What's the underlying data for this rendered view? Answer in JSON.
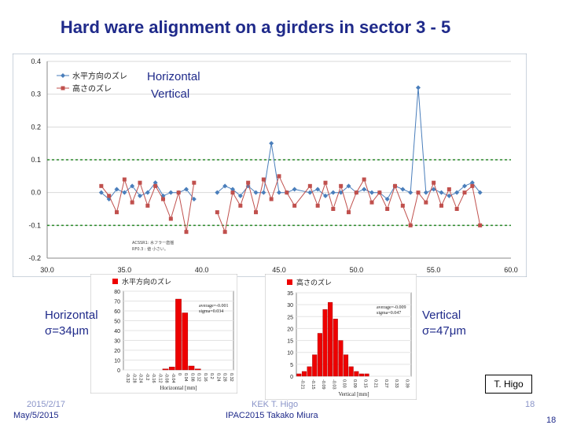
{
  "title": "Hard ware alignment on a girders in sector 3 - 5",
  "annotations": {
    "legend_h": "Horizontal",
    "legend_v": "Vertical",
    "hist_h_label": "Horizontal",
    "hist_h_sigma": "σ=34μm",
    "hist_v_label": "Vertical",
    "hist_v_sigma": "σ=47μm",
    "credit": "T. Higo"
  },
  "footer": {
    "left_top": "2015/2/17",
    "left": "May/5/2015",
    "center_top": "KEK T. Higo",
    "center": "IPAC2015 Takako Miura",
    "right_top": "18",
    "right": "18"
  },
  "colors": {
    "horizontal": "#4a7ebb",
    "vertical": "#c0504d",
    "title": "#1f2a8a",
    "threshold": "#2a8a2a"
  },
  "chart_data": [
    {
      "type": "line",
      "xlim": [
        30,
        60
      ],
      "ylim": [
        -0.2,
        0.4
      ],
      "x_ticks": [
        "30.0",
        "35.0",
        "40.0",
        "45.0",
        "50.0",
        "55.0",
        "60.0"
      ],
      "y_ticks": [
        "0.4",
        "0.3",
        "0.2",
        "0.1",
        "0.0",
        "-0.1",
        "-0.2"
      ],
      "grid": true,
      "legend_position": "top-left",
      "thresholds": [
        0.1,
        -0.1
      ],
      "inner_note": [
        "ACSSR1: 水フラー歯揺",
        "RF0.3 : 値 小さい。"
      ],
      "series": [
        {
          "name": "水平方向のズレ",
          "color": "#4a7ebb",
          "marker": "diamond",
          "x": [
            33.5,
            34.0,
            34.5,
            35.0,
            35.5,
            36.0,
            36.5,
            37.0,
            37.5,
            38.0,
            38.5,
            39.0,
            39.5,
            41.0,
            41.5,
            42.0,
            42.5,
            43.0,
            43.5,
            44.0,
            44.5,
            45.0,
            45.5,
            46.0,
            47.0,
            47.5,
            48.0,
            48.5,
            49.0,
            49.5,
            50.0,
            50.5,
            51.0,
            51.5,
            52.0,
            52.5,
            53.0,
            53.5,
            54.0,
            54.5,
            55.0,
            55.5,
            56.0,
            56.5,
            57.0,
            57.5,
            58.0
          ],
          "y": [
            0.0,
            -0.02,
            0.01,
            0.0,
            0.02,
            -0.01,
            0.0,
            0.03,
            -0.01,
            0.0,
            0.0,
            0.01,
            -0.02,
            0.0,
            0.02,
            0.01,
            -0.01,
            0.02,
            0.0,
            0.0,
            0.15,
            0.0,
            0.0,
            0.01,
            0.0,
            0.01,
            -0.01,
            0.0,
            0.0,
            0.02,
            0.0,
            0.01,
            0.0,
            0.0,
            -0.02,
            0.02,
            0.01,
            0.0,
            0.32,
            0.0,
            0.01,
            0.0,
            -0.01,
            0.0,
            0.02,
            0.03,
            0.0
          ]
        },
        {
          "name": "高さのズレ",
          "color": "#c0504d",
          "marker": "square",
          "x": [
            33.5,
            34.0,
            34.5,
            35.0,
            35.5,
            36.0,
            36.5,
            37.0,
            37.5,
            38.0,
            38.5,
            39.0,
            39.5,
            41.0,
            41.5,
            42.0,
            42.5,
            43.0,
            43.5,
            44.0,
            44.5,
            45.0,
            45.5,
            46.0,
            47.0,
            47.5,
            48.0,
            48.5,
            49.0,
            49.5,
            50.0,
            50.5,
            51.0,
            51.5,
            52.0,
            52.5,
            53.0,
            53.5,
            54.0,
            54.5,
            55.0,
            55.5,
            56.0,
            56.5,
            57.0,
            57.5,
            58.0
          ],
          "y": [
            0.02,
            -0.01,
            -0.06,
            0.04,
            -0.03,
            0.03,
            -0.04,
            0.02,
            -0.02,
            -0.08,
            0.0,
            -0.12,
            0.03,
            -0.06,
            -0.12,
            0.0,
            -0.04,
            0.03,
            -0.06,
            0.04,
            -0.02,
            0.05,
            0.0,
            -0.04,
            0.02,
            -0.04,
            0.03,
            -0.05,
            0.02,
            -0.06,
            0.0,
            0.04,
            -0.03,
            0.0,
            -0.05,
            0.02,
            -0.04,
            -0.1,
            0.0,
            -0.03,
            0.03,
            -0.04,
            0.01,
            -0.05,
            0.0,
            0.02,
            -0.1
          ]
        }
      ]
    },
    {
      "type": "bar",
      "legend": "水平方向のズレ",
      "stats_average": "average=-0.001",
      "stats_sigma": "sigma=0.034",
      "ylim": [
        0,
        80
      ],
      "y_ticks": [
        "80",
        "70",
        "60",
        "50",
        "40",
        "30",
        "20",
        "10",
        "0"
      ],
      "xlabel": "Horizontal [mm]",
      "color": "#ee0000",
      "categories": [
        "-0.32",
        "-0.28",
        "-0.24",
        "-0.2",
        "-0.16",
        "-0.12",
        "-0.08",
        "-0.04",
        "0",
        "0.04",
        "0.08",
        "0.12",
        "0.16",
        "0.2",
        "0.24",
        "0.28",
        "0.32"
      ],
      "values": [
        0,
        0,
        0,
        0,
        0,
        0,
        1,
        3,
        72,
        58,
        4,
        1,
        0,
        0,
        0,
        0,
        0
      ],
      "x_tick_labels": [
        "-0.32",
        "-0.28",
        "-0.24",
        "-0.2",
        "-0.16",
        "-0.12",
        "-0.08",
        "-0.04",
        "0",
        "0.04",
        "0.08",
        "0.12",
        "0.16",
        "0.2",
        "0.24",
        "0.28",
        "0.32"
      ]
    },
    {
      "type": "bar",
      "legend": "高さのズレ",
      "stats_average": "average=-0.009",
      "stats_sigma": "sigma=0.047",
      "ylim": [
        0,
        35
      ],
      "y_ticks": [
        "35",
        "30",
        "25",
        "20",
        "15",
        "10",
        "5",
        "0"
      ],
      "xlabel": "Vertical [mm]",
      "color": "#ee0000",
      "categories": [
        "-0.21",
        "-0.18",
        "-0.15",
        "-0.12",
        "-0.09",
        "-0.06",
        "-0.03",
        "0",
        "0.03",
        "0.06",
        "0.09",
        "0.12",
        "0.15",
        "0.18",
        "0.21",
        "0.24",
        "0.27",
        "0.3",
        "0.33",
        "0.36",
        "0.39",
        "0.42"
      ],
      "values": [
        1,
        2,
        4,
        9,
        18,
        28,
        31,
        24,
        15,
        9,
        4,
        2,
        1,
        1,
        0,
        0,
        0,
        0,
        0,
        0,
        0,
        0
      ],
      "x_tick_labels": [
        "-0.21",
        "-0.15",
        "-0.09",
        "-0.03",
        "0.03",
        "0.09",
        "0.15",
        "0.21",
        "0.27",
        "0.33",
        "0.39"
      ]
    }
  ]
}
